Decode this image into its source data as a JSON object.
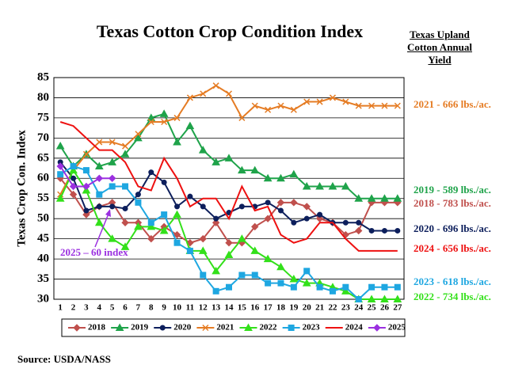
{
  "chart_data": {
    "type": "line",
    "title": "Texas Cotton Crop Condition Index",
    "side_title": "Texas Upland Cotton Annual Yield",
    "y_label": "Texas Crop Con. Index",
    "source": "Source:  USDA/NASS",
    "categories": [
      1,
      2,
      3,
      4,
      5,
      6,
      7,
      8,
      9,
      10,
      11,
      12,
      13,
      14,
      15,
      16,
      17,
      18,
      19,
      20,
      21,
      22,
      23,
      24,
      25,
      26,
      27
    ],
    "ylim": [
      30,
      85
    ],
    "yticks": [
      30,
      35,
      40,
      45,
      50,
      55,
      60,
      65,
      70,
      75,
      80,
      85
    ],
    "grid": true,
    "series": [
      {
        "name": "2018",
        "color": "#c0504d",
        "marker": "diamond",
        "values": [
          60,
          56,
          51,
          53,
          54,
          49,
          49,
          45,
          48,
          46,
          44,
          45,
          49,
          44,
          44,
          48,
          50,
          54,
          54,
          53,
          50,
          49,
          46,
          47,
          54,
          54,
          54
        ]
      },
      {
        "name": "2019",
        "color": "#1fa34a",
        "marker": "triangle",
        "values": [
          68,
          63,
          66,
          63,
          64,
          66,
          70,
          75,
          76,
          69,
          73,
          67,
          64,
          65,
          62,
          62,
          60,
          60,
          61,
          58,
          58,
          58,
          58,
          55,
          55,
          55,
          55
        ]
      },
      {
        "name": "2020",
        "color": "#0d1f5c",
        "marker": "circle",
        "values": [
          64,
          60,
          52,
          53,
          53,
          52.5,
          56,
          61.5,
          59,
          53,
          55.5,
          53,
          50,
          51.5,
          53,
          53,
          54,
          52,
          49,
          50,
          51,
          49,
          49,
          49,
          47,
          47,
          47
        ]
      },
      {
        "name": "2021",
        "color": "#e57c24",
        "marker": "x",
        "values": [
          56,
          62,
          66,
          69,
          69,
          68,
          71,
          74,
          74,
          75,
          80,
          81,
          83,
          81,
          75,
          78,
          77,
          78,
          77,
          79,
          79,
          80,
          79,
          78,
          78,
          78,
          78
        ]
      },
      {
        "name": "2022",
        "color": "#33e01a",
        "marker": "triangle",
        "values": [
          55,
          62,
          57,
          49,
          45,
          43,
          48,
          48,
          47,
          51,
          42,
          42,
          37,
          41,
          45,
          42,
          40,
          38,
          35,
          34,
          34,
          33,
          32,
          30,
          30,
          30,
          30
        ]
      },
      {
        "name": "2023",
        "color": "#1ea7e1",
        "marker": "square",
        "values": [
          61,
          63,
          62,
          56,
          58,
          58,
          54,
          49,
          51,
          44,
          42,
          36,
          32,
          33,
          36,
          36,
          34,
          34,
          33,
          37,
          33,
          32,
          33,
          30,
          33,
          33,
          33
        ]
      },
      {
        "name": "2024",
        "color": "#ee1111",
        "marker": "none",
        "values": [
          74,
          73,
          70,
          67,
          67,
          64,
          58,
          57,
          65,
          60,
          53,
          55,
          55,
          50,
          58,
          52,
          53,
          46,
          44,
          45,
          49,
          49,
          45,
          42,
          42,
          42,
          42
        ]
      },
      {
        "name": "2025",
        "color": "#9b30e0",
        "marker": "diamond",
        "values": [
          63,
          58,
          58,
          60,
          60,
          null,
          null,
          null,
          null,
          null,
          null,
          null,
          null,
          null,
          null,
          null,
          null,
          null,
          null,
          null,
          null,
          null,
          null,
          null,
          null,
          null,
          null
        ]
      }
    ],
    "annotations": [
      {
        "text": "2021 - 666 lbs./ac.",
        "color": "#e57c24"
      },
      {
        "text": "2019 - 589 lbs./ac.",
        "color": "#1fa34a"
      },
      {
        "text": "2018 - 783 lbs./ac.",
        "color": "#c0504d"
      },
      {
        "text": "2020 - 696 lbs./ac.",
        "color": "#0d1f5c"
      },
      {
        "text": "2024 - 656 lbs./ac.",
        "color": "#ee1111"
      },
      {
        "text": "2023 - 618 lbs./ac.",
        "color": "#1ea7e1"
      },
      {
        "text": "2022 - 734 lbs./ac.",
        "color": "#33e01a"
      },
      {
        "text": "2025 – 60 index",
        "color": "#9b30e0"
      }
    ]
  }
}
